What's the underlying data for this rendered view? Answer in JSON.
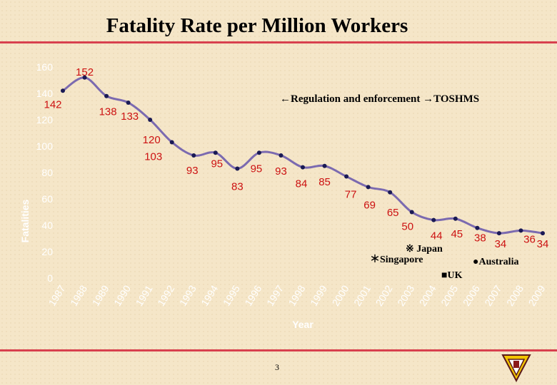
{
  "slide": {
    "title": "Fatality Rate per Million Workers",
    "page_number": "3"
  },
  "colors": {
    "line": "#7b6ab0",
    "marker": "#1a1a55",
    "data_label": "#cc1111",
    "tick_text": "#ffffff",
    "rule": "#d8404e",
    "background": "#f5e6c8"
  },
  "chart_data": {
    "type": "line",
    "title": "",
    "xlabel": "Year",
    "ylabel": "Fatalities",
    "ylim": [
      0,
      160
    ],
    "yticks": [
      "0",
      "20",
      "40",
      "60",
      "80",
      "100",
      "120",
      "140",
      "160"
    ],
    "categories": [
      "1987",
      "1988",
      "1989",
      "1990",
      "1991",
      "1992",
      "1993",
      "1994",
      "1995",
      "1996",
      "1997",
      "1998",
      "1999",
      "2000",
      "2001",
      "2002",
      "2003",
      "2004",
      "2005",
      "2006",
      "2007",
      "2008",
      "2009"
    ],
    "values": [
      142,
      152,
      138,
      133,
      120,
      103,
      93,
      95,
      83,
      95,
      93,
      84,
      85,
      77,
      69,
      65,
      50,
      44,
      45,
      38,
      34,
      36,
      34
    ],
    "grid": false,
    "annotations": [
      {
        "text": "←Regulation and enforcement →TOSHMS"
      },
      {
        "text": "※ Japan"
      },
      {
        "text": "＊Singapore"
      },
      {
        "text": "●Australia"
      },
      {
        "text": "■UK"
      }
    ]
  }
}
